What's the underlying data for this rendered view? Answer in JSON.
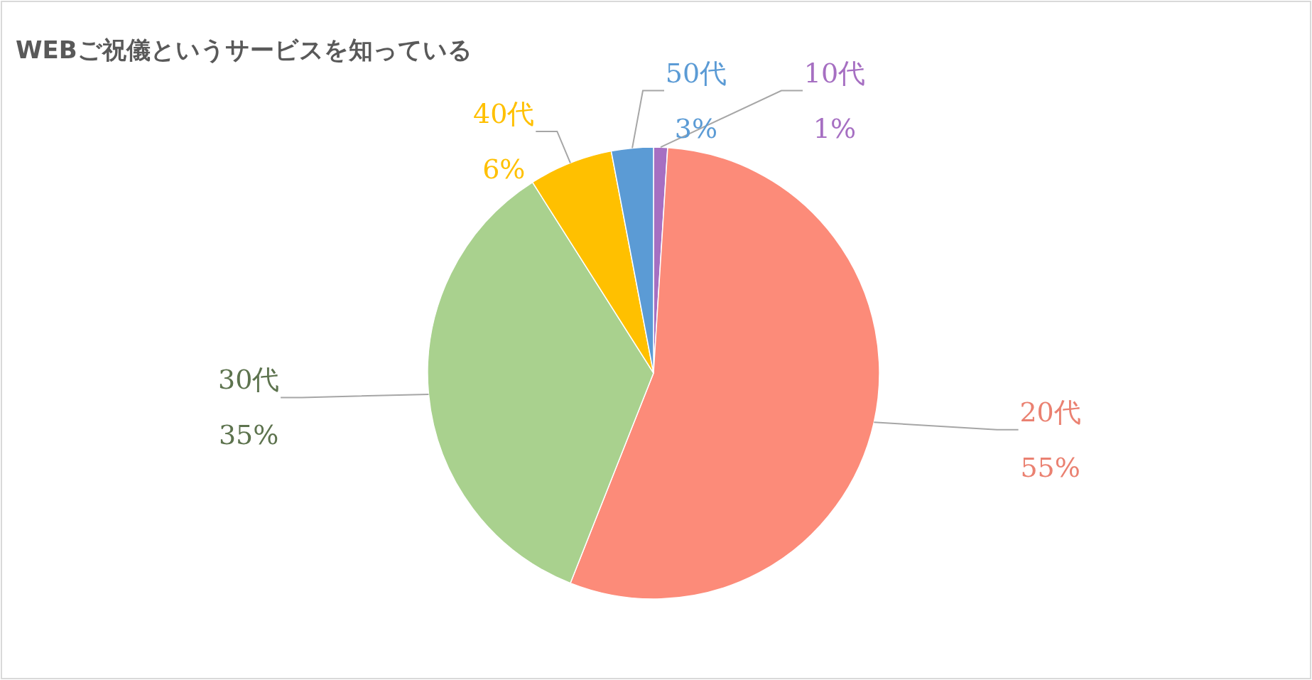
{
  "chart_data": {
    "type": "pie",
    "title": "WEBご祝儀というサービスを知っている",
    "categories": [
      "10代",
      "20代",
      "30代",
      "40代",
      "50代"
    ],
    "values": [
      1,
      55,
      35,
      6,
      3
    ],
    "colors": [
      "#a66fc2",
      "#fc8b79",
      "#a9d18e",
      "#ffc000",
      "#5b9bd5"
    ],
    "value_labels": [
      "1%",
      "55%",
      "35%",
      "6%",
      "3%"
    ]
  }
}
